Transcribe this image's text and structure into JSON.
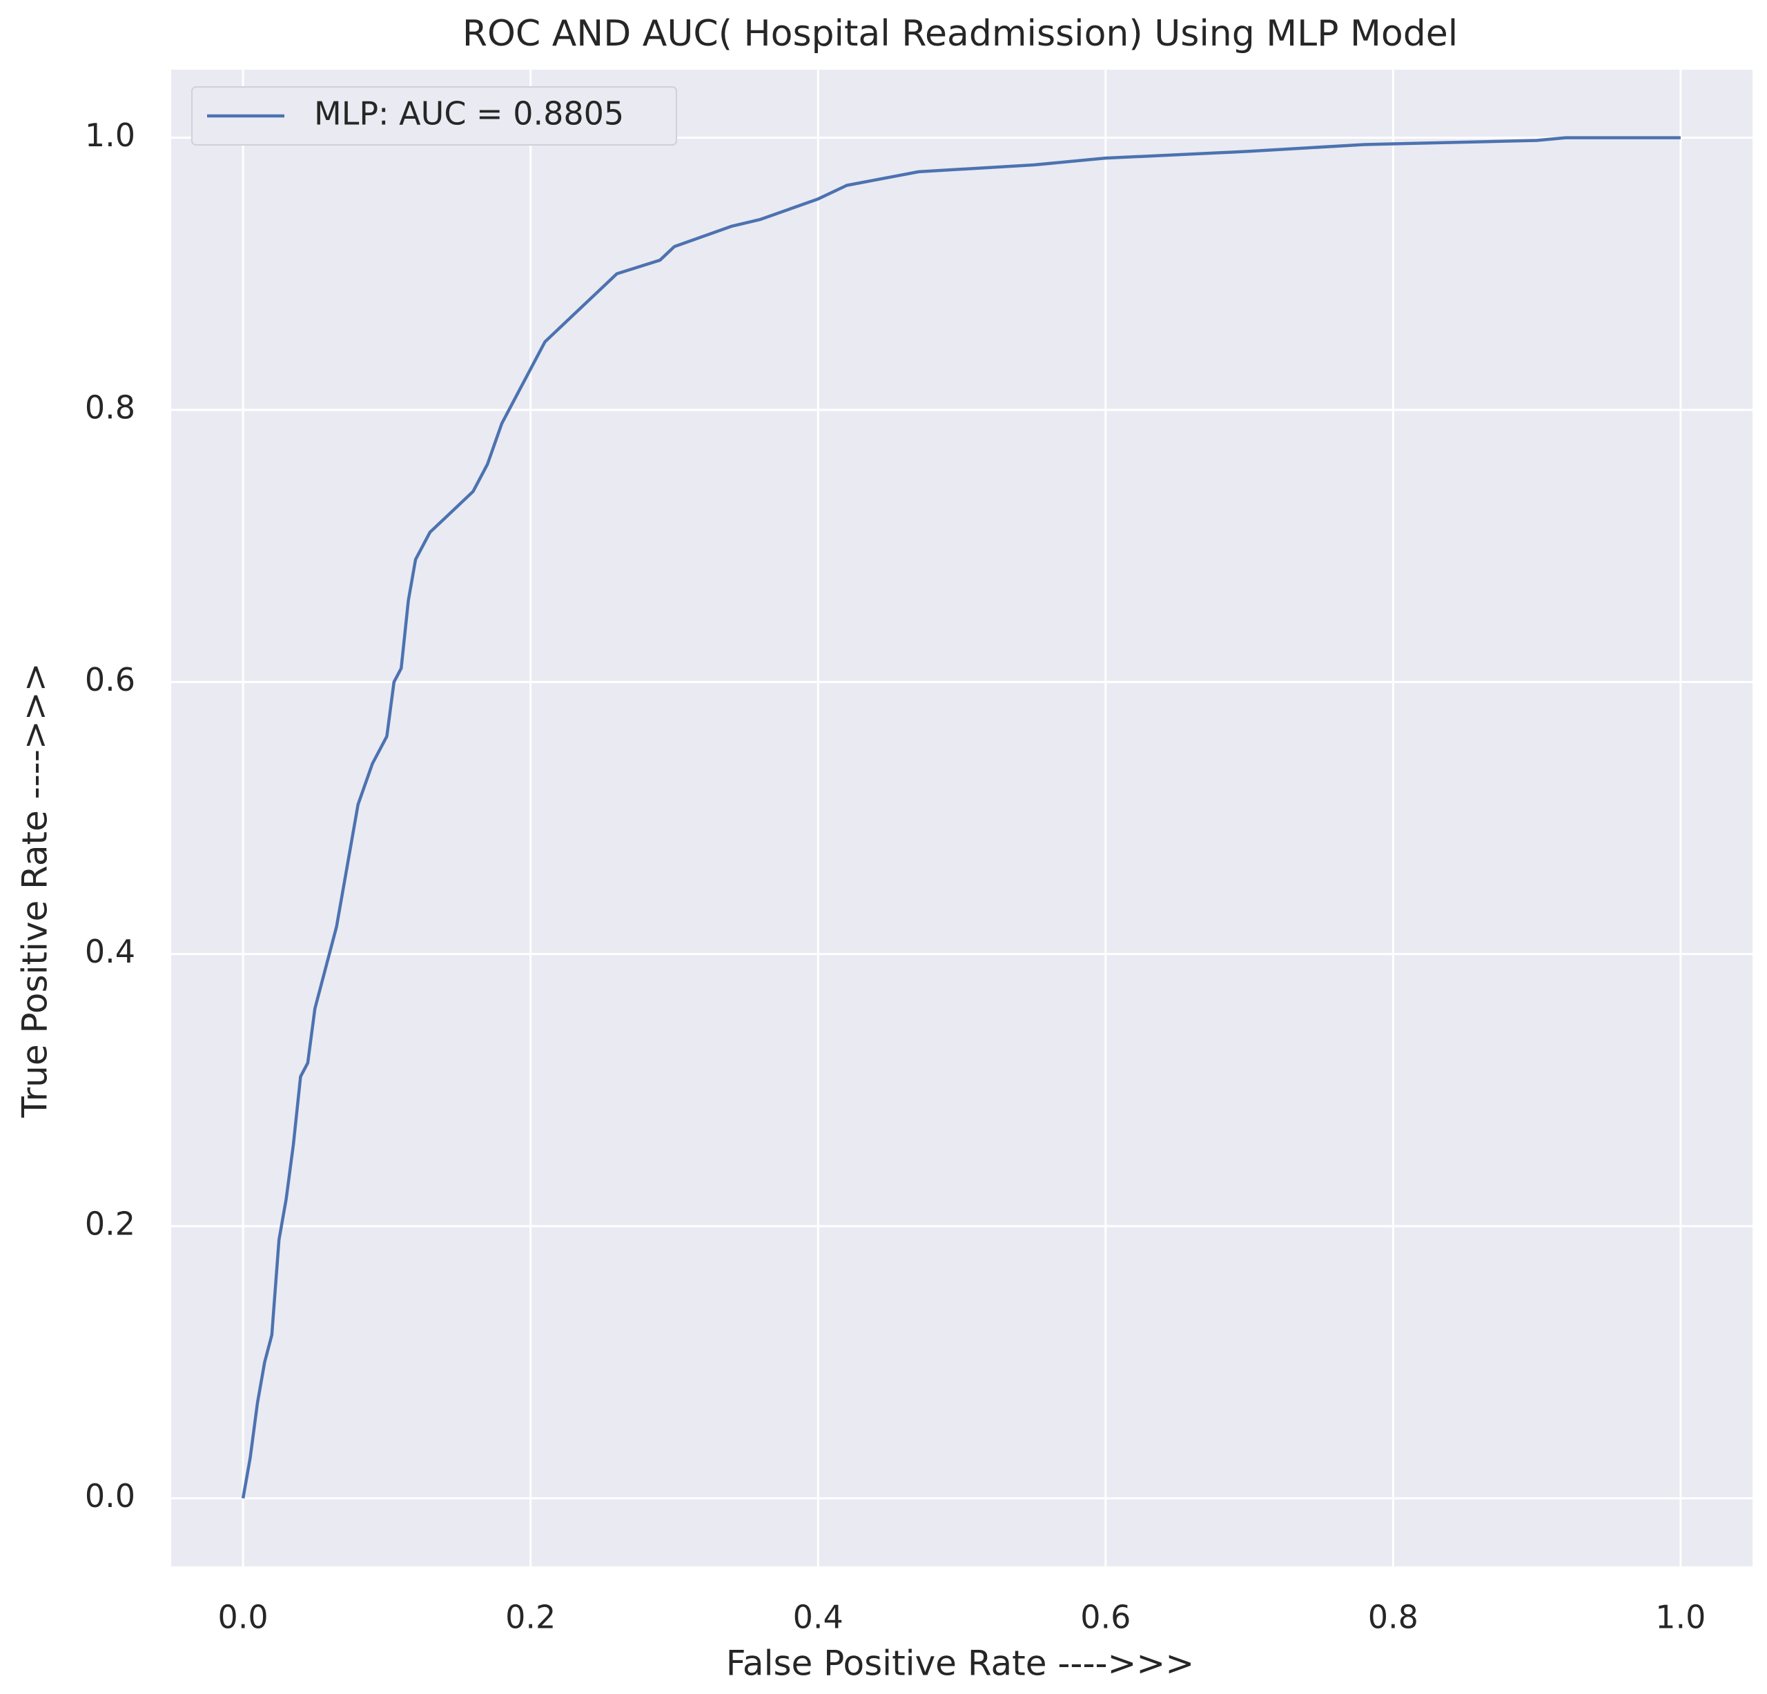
{
  "chart_data": {
    "type": "line",
    "title": "ROC AND AUC( Hospital Readmission) Using MLP Model",
    "x_label": "False Positive Rate ---->>>",
    "y_label": "True Positive Rate ---->>>",
    "x": [
      0,
      0.005,
      0.01,
      0.015,
      0.02,
      0.025,
      0.03,
      0.035,
      0.04,
      0.045,
      0.05,
      0.06,
      0.065,
      0.07,
      0.075,
      0.08,
      0.09,
      0.1,
      0.105,
      0.11,
      0.115,
      0.12,
      0.13,
      0.14,
      0.16,
      0.17,
      0.18,
      0.19,
      0.2,
      0.21,
      0.23,
      0.25,
      0.26,
      0.29,
      0.3,
      0.34,
      0.36,
      0.4,
      0.42,
      0.47,
      0.55,
      0.6,
      0.7,
      0.78,
      0.9,
      0.92,
      1
    ],
    "series": [
      {
        "name": "MLP: AUC = 0.8805",
        "color": "#4c72b0",
        "values": [
          0,
          0.03,
          0.07,
          0.1,
          0.12,
          0.19,
          0.22,
          0.26,
          0.31,
          0.32,
          0.36,
          0.4,
          0.42,
          0.45,
          0.48,
          0.51,
          0.54,
          0.56,
          0.6,
          0.61,
          0.66,
          0.69,
          0.71,
          0.72,
          0.74,
          0.76,
          0.79,
          0.81,
          0.83,
          0.85,
          0.87,
          0.89,
          0.9,
          0.91,
          0.92,
          0.935,
          0.94,
          0.955,
          0.965,
          0.975,
          0.98,
          0.985,
          0.99,
          0.995,
          0.998,
          1,
          1
        ]
      }
    ],
    "xlim": [
      -0.05,
      1.05
    ],
    "ylim": [
      -0.05,
      1.05
    ],
    "xticks": [
      {
        "value": 0,
        "label": "0.0"
      },
      0.2,
      0.4,
      0.6,
      0.8,
      {
        "value": 1,
        "label": "1.0"
      }
    ],
    "yticks": [
      {
        "value": 0,
        "label": "0.0"
      },
      0.2,
      0.4,
      0.6,
      0.8,
      {
        "value": 1,
        "label": "1.0"
      }
    ],
    "grid": true,
    "legend": "upper left"
  }
}
